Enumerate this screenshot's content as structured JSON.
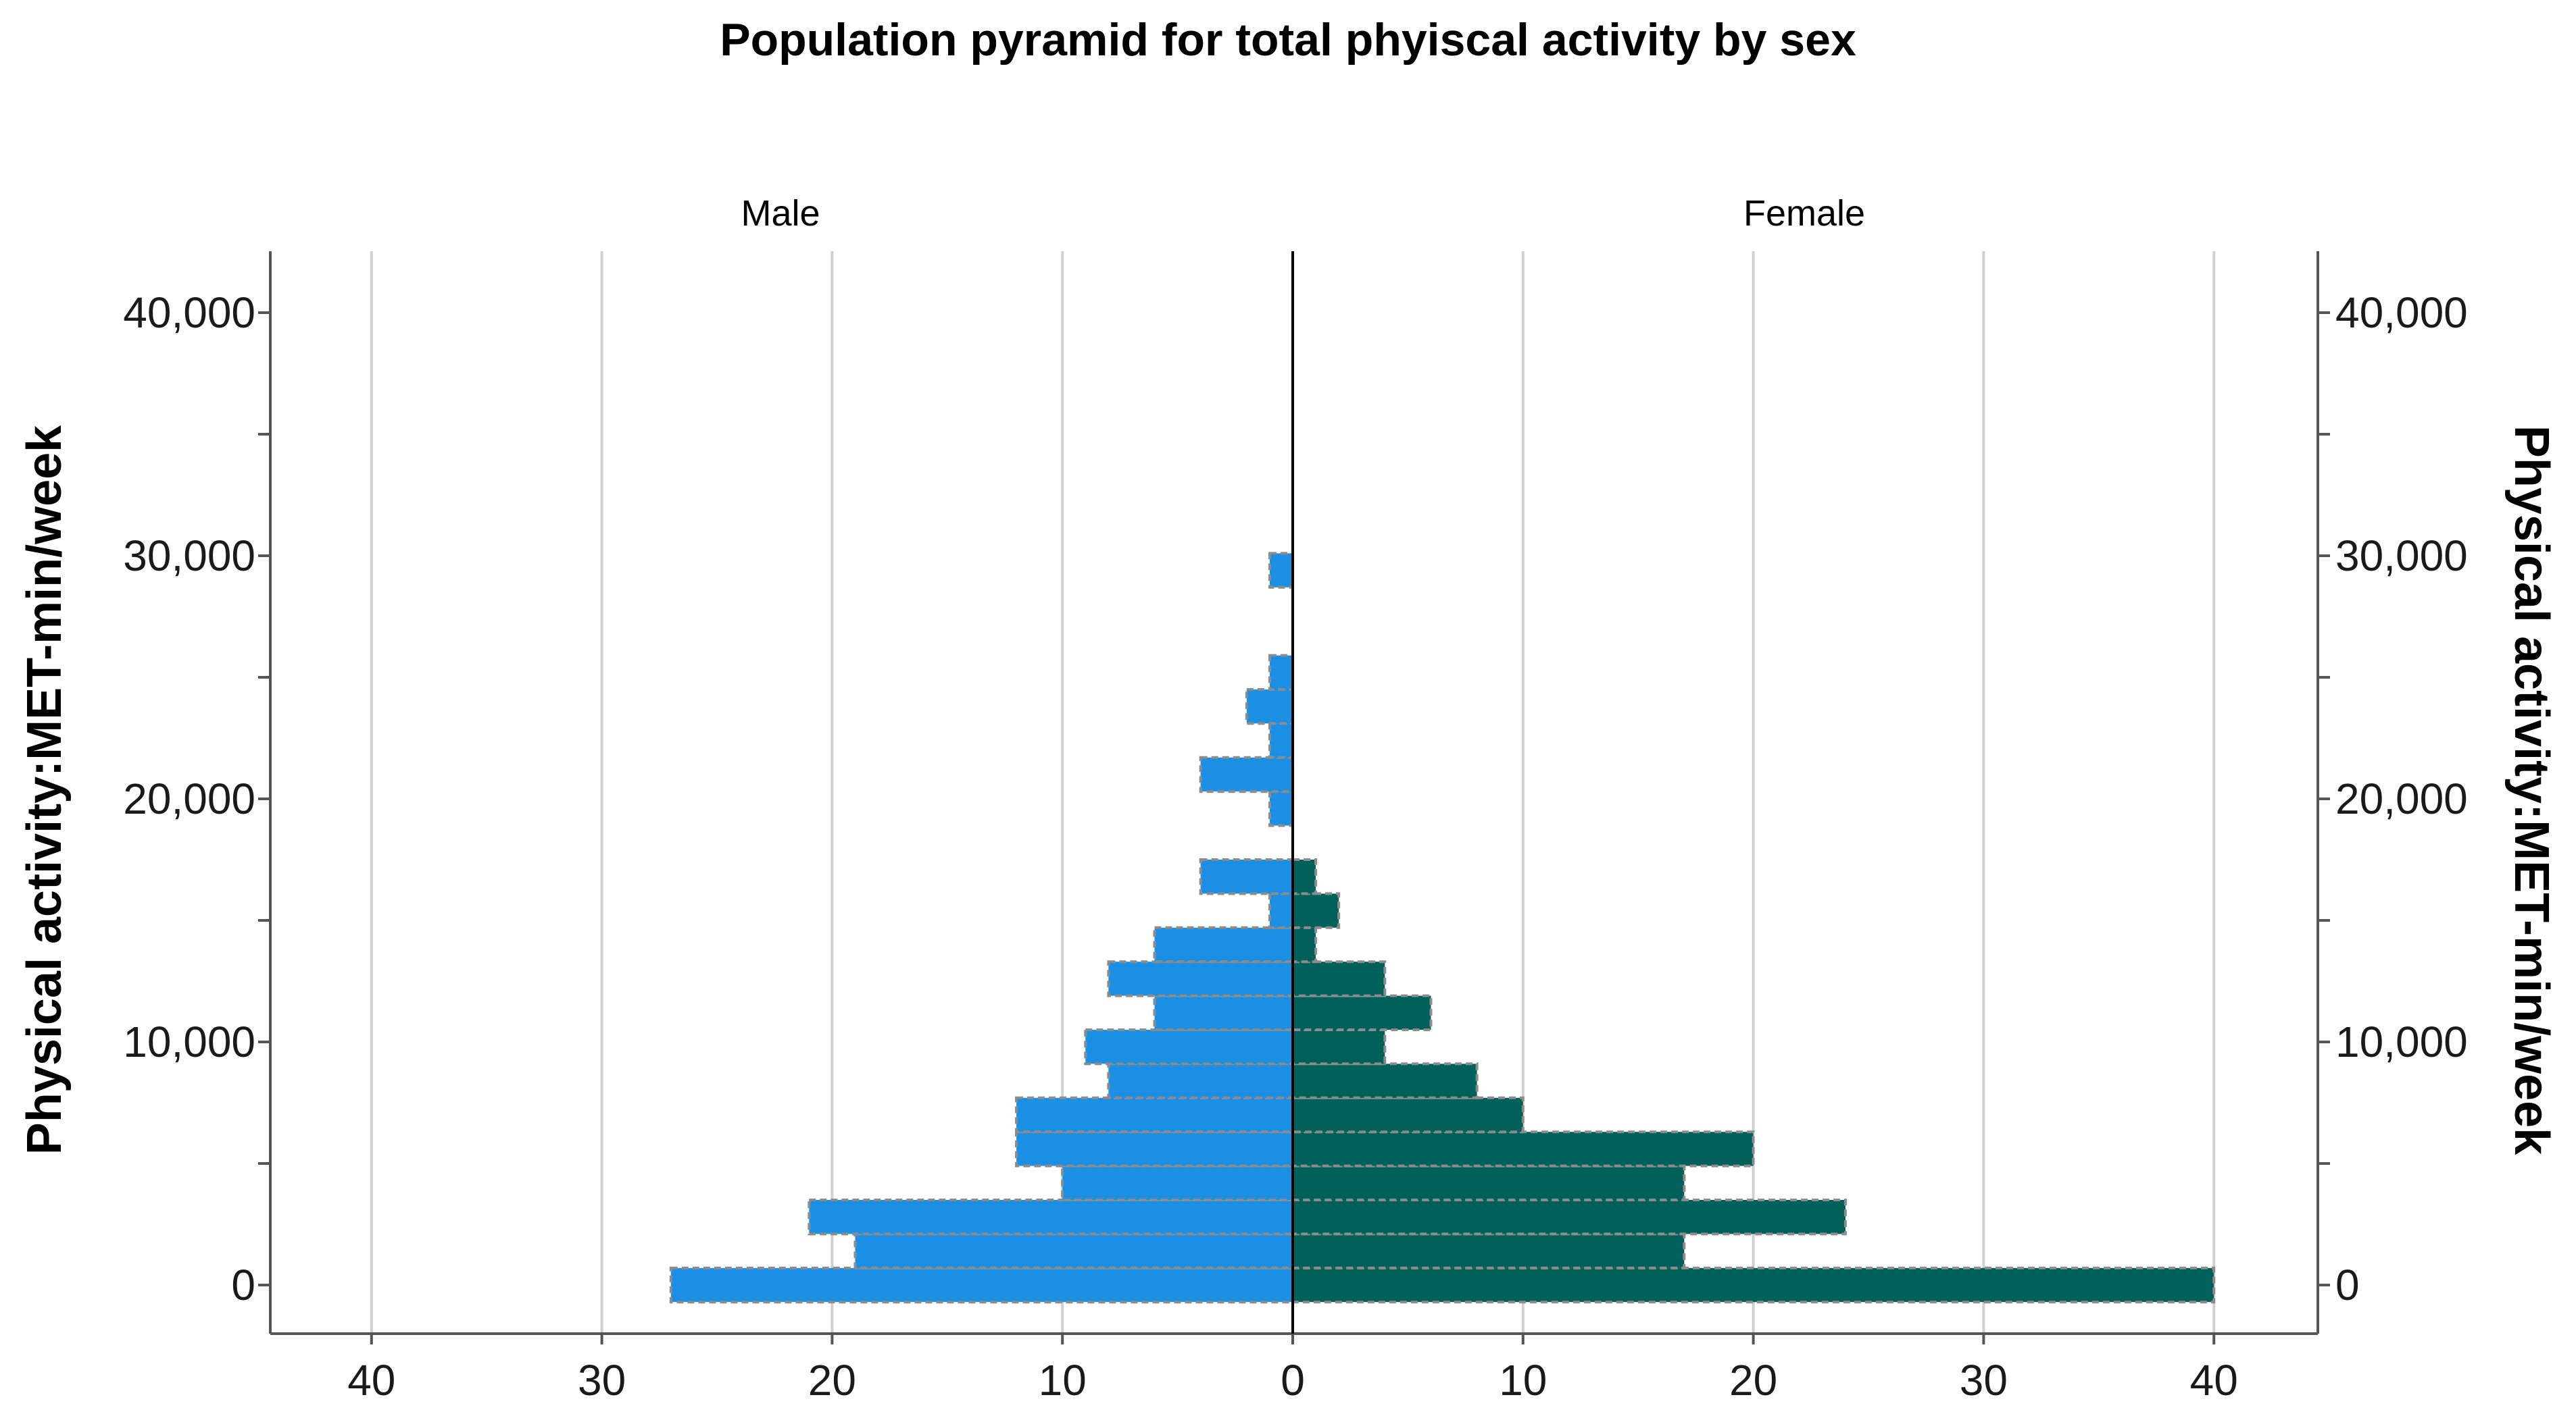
{
  "chart_data": {
    "type": "bar",
    "subtype": "population-pyramid",
    "title": "Population pyramid for total phyiscal activity  by sex",
    "panels": [
      "Male",
      "Female"
    ],
    "ylabel_left": "Physical activity:MET-min/week",
    "ylabel_right": "Physical activity:MET-min/week",
    "y_ticks": [
      "0",
      "10,000",
      "20,000",
      "30,000",
      "40,000"
    ],
    "y_tick_values": [
      0,
      10000,
      20000,
      30000,
      40000
    ],
    "ylim": [
      -1000,
      42000
    ],
    "x_ticks_male": [
      "40",
      "30",
      "20",
      "10",
      "0"
    ],
    "x_ticks_female": [
      "0",
      "10",
      "20",
      "30",
      "40"
    ],
    "xlim": [
      0,
      45
    ],
    "bin_width": 1400,
    "y": [
      0,
      1400,
      2800,
      4200,
      5600,
      7000,
      8400,
      9800,
      11200,
      12600,
      14000,
      15400,
      16800,
      18200,
      19600,
      21000,
      22400,
      23800,
      25200,
      26600,
      28000,
      29400,
      30800
    ],
    "series": [
      {
        "name": "Male",
        "values": [
          27,
          19,
          21,
          10,
          12,
          12,
          8,
          9,
          6,
          8,
          6,
          1,
          4,
          0,
          1,
          4,
          1,
          2,
          1,
          0,
          0,
          1,
          0
        ]
      },
      {
        "name": "Female",
        "values": [
          40,
          17,
          24,
          17,
          20,
          10,
          8,
          4,
          6,
          4,
          1,
          2,
          1,
          0,
          0,
          0,
          0,
          0,
          0,
          0,
          0,
          0,
          0
        ]
      }
    ],
    "colors": {
      "male": "#1a8fe3",
      "female": "#00605a",
      "bar_border": "#8c8c8c",
      "gridline": "#d0d0d0",
      "axis": "#000000"
    },
    "grid": true
  }
}
